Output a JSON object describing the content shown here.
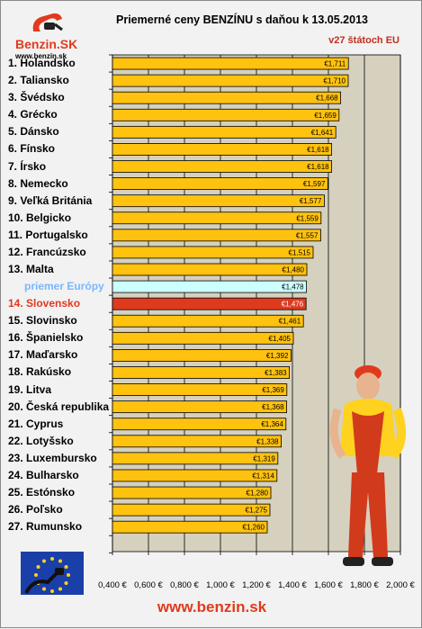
{
  "header": {
    "title": "Priemerné ceny BENZÍNU s daňou k 13.05.2013",
    "subtitle": "v27 štátoch EU"
  },
  "logo": {
    "brand": "Benzin.SK",
    "url": "www.benzin.sk"
  },
  "footer": {
    "url": "www.benzin.sk"
  },
  "colors": {
    "bar": "#ffc20e",
    "bar_avg": "#ccffff",
    "bar_slovakia": "#e03a1e",
    "plot_bg": "#d6d1bf",
    "gridline": "#000000",
    "brand": "#e03a1e"
  },
  "chart_data": {
    "type": "bar",
    "orientation": "horizontal",
    "title": "Priemerné ceny BENZÍNU s daňou k 13.05.2013",
    "subtitle": "v27 štátoch EU",
    "categories": [
      "1. Holandsko",
      "2. Taliansko",
      "3. Švédsko",
      "4. Grécko",
      "5. Dánsko",
      "6. Fínsko",
      "7. Írsko",
      "8. Nemecko",
      "9. Veľká Británia",
      "10. Belgicko",
      "11. Portugalsko",
      "12. Francúzsko",
      "13. Malta",
      "priemer Európy",
      "14. Slovensko",
      "15. Slovinsko",
      "16. Španielsko",
      "17. Maďarsko",
      "18. Rakúsko",
      "19. Litva",
      "20. Česká republika",
      "21. Cyprus",
      "22. Lotyšsko",
      "23. Luxembursko",
      "24. Bulharsko",
      "25. Estónsko",
      "26. Poľsko",
      "27. Rumunsko"
    ],
    "values": [
      1.711,
      1.71,
      1.668,
      1.659,
      1.641,
      1.618,
      1.618,
      1.597,
      1.577,
      1.559,
      1.557,
      1.515,
      1.48,
      1.478,
      1.476,
      1.461,
      1.405,
      1.392,
      1.383,
      1.369,
      1.368,
      1.364,
      1.338,
      1.319,
      1.314,
      1.28,
      1.275,
      1.26
    ],
    "value_labels": [
      "€1,711",
      "€1,710",
      "€1,668",
      "€1,659",
      "€1,641",
      "€1,618",
      "€1,618",
      "€1,597",
      "€1,577",
      "€1,559",
      "€1,557",
      "€1,515",
      "€1,480",
      "€1,478",
      "€1,476",
      "€1,461",
      "€1,405",
      "€1,392",
      "€1,383",
      "€1,369",
      "€1,368",
      "€1,364",
      "€1,338",
      "€1,319",
      "€1,314",
      "€1,280",
      "€1,275",
      "€1,260"
    ],
    "highlight": {
      "avg": "priemer Európy",
      "slovakia": "14. Slovensko"
    },
    "xlim": [
      0.4,
      2.0
    ],
    "xticks": [
      0.4,
      0.6,
      0.8,
      1.0,
      1.2,
      1.4,
      1.6,
      1.8,
      2.0
    ],
    "xtick_labels": [
      "0,400 €",
      "0,600 €",
      "0,800 €",
      "1,000 €",
      "1,200 €",
      "1,400 €",
      "1,600 €",
      "1,800 €",
      "2,000 €"
    ],
    "grid": "vertical"
  }
}
